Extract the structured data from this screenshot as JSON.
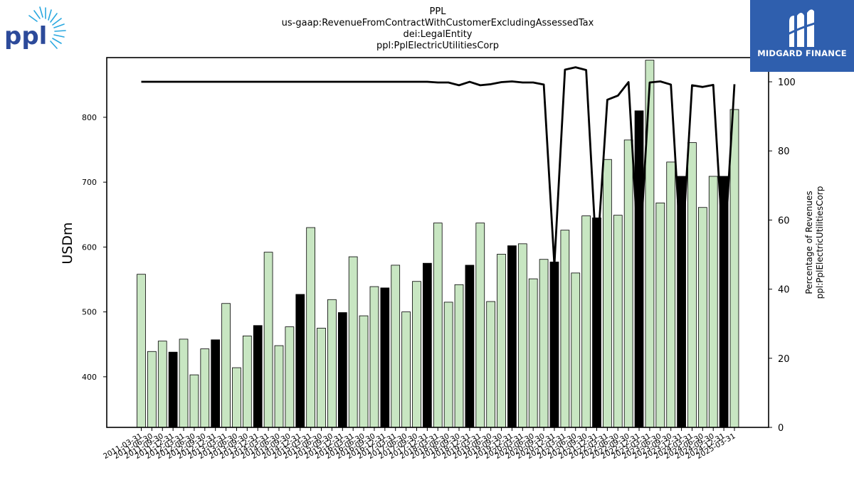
{
  "title_lines": [
    "PPL",
    "us-gaap:RevenueFromContractWithCustomerExcludingAssessedTax",
    "dei:LegalEntity",
    "ppl:PplElectricUtilitiesCorp"
  ],
  "logos": {
    "left_text": "ppl",
    "right_text": "MIDGARD FINANCE"
  },
  "colors": {
    "bar_light": "#c8e6c2",
    "bar_dark": "#000000",
    "line": "#000000",
    "logo_left": "#2c4a9a",
    "logo_left_rays": "#29a8e0",
    "logo_right_bg": "#2f5fae"
  },
  "chart_data": {
    "type": "bar",
    "ylabel": "USDm",
    "y2label_lines": [
      "Percentage of Revenues",
      "ppl:PplElectricUtilitiesCorp"
    ],
    "ylim": [
      322,
      892
    ],
    "y2lim": [
      0,
      107
    ],
    "yticks": [
      400,
      500,
      600,
      700,
      800
    ],
    "y2ticks": [
      0,
      20,
      40,
      60,
      80,
      100
    ],
    "grid": false,
    "categories": [
      "2011-03-31",
      "2011-06-30",
      "2011-09-30",
      "2011-12-31",
      "2012-03-31",
      "2012-06-30",
      "2012-09-30",
      "2012-12-31",
      "2013-03-31",
      "2013-06-30",
      "2013-09-30",
      "2013-12-31",
      "2014-03-31",
      "2014-06-30",
      "2014-09-30",
      "2014-12-31",
      "2015-03-31",
      "2015-06-30",
      "2015-09-30",
      "2015-12-31",
      "2016-03-31",
      "2016-06-30",
      "2016-09-30",
      "2016-12-31",
      "2017-03-31",
      "2017-06-30",
      "2017-09-30",
      "2017-12-31",
      "2018-03-31",
      "2018-06-30",
      "2018-09-30",
      "2018-12-31",
      "2019-03-31",
      "2019-06-30",
      "2019-09-30",
      "2019-12-31",
      "2020-03-31",
      "2020-06-30",
      "2020-09-30",
      "2020-12-31",
      "2021-03-31",
      "2021-06-30",
      "2021-09-30",
      "2021-12-31",
      "2022-03-31",
      "2022-06-30",
      "2022-09-30",
      "2022-12-31",
      "2023-03-31",
      "2023-06-30",
      "2023-09-30",
      "2023-12-31",
      "2024-03-31",
      "2024-06-30",
      "2024-09-30",
      "2024-12-31",
      "2025-03-31"
    ],
    "xtick_labels": [
      "2011-03-31",
      "2011-06-30",
      "2011-09-30",
      "2011-12-31",
      "2012-03-31",
      "2012-06-30",
      "2012-09-30",
      "2012-12-31",
      "2013-03-31",
      "2013-06-30",
      "2013-09-30",
      "2013-12-31",
      "2014-03-31",
      "2014-06-30",
      "2014-09-30",
      "2014-12-31",
      "2015-03-31",
      "2015-06-30",
      "2015-09-30",
      "2015-12-31",
      "2016-03-31",
      "2016-06-30",
      "2016-09-30",
      "2016-12-31",
      "2017-03-31",
      "2017-06-30",
      "2017-09-30",
      "2017-12-31",
      "2018-03-31",
      "2018-06-30",
      "2018-09-30",
      "2018-12-31",
      "2019-03-31",
      "2019-06-30",
      "2019-09-30",
      "2019-12-31",
      "2020-03-31",
      "2020-06-30",
      "2020-09-30",
      "2020-12-31",
      "2021-03-31",
      "2021-06-30",
      "2021-09-30",
      "2021-12-31",
      "2022-03-31",
      "2022-06-30",
      "2022-09-30",
      "2022-12-31",
      "2023-03-31",
      "2023-06-30",
      "2023-09-30",
      "2023-12-31",
      "2024-03-31",
      "2024-06-30",
      "2024-09-30",
      "2024-12-31",
      "2025-03-31"
    ],
    "series": [
      {
        "axis": "left",
        "kind": "bar",
        "values": [
          558,
          439,
          455,
          438,
          458,
          403,
          443,
          457,
          513,
          414,
          463,
          479,
          592,
          448,
          477,
          527,
          630,
          475,
          519,
          499,
          585,
          494,
          539,
          537,
          572,
          500,
          547,
          575,
          637,
          515,
          542,
          572,
          637,
          516,
          589,
          602,
          605,
          551,
          581,
          577,
          626,
          560,
          648,
          645,
          735,
          649,
          765,
          810,
          888,
          668,
          731,
          709,
          761,
          661,
          709,
          709,
          812
        ],
        "dark": [
          false,
          false,
          false,
          true,
          false,
          false,
          false,
          true,
          false,
          false,
          false,
          true,
          false,
          false,
          false,
          true,
          false,
          false,
          false,
          true,
          false,
          false,
          false,
          true,
          false,
          false,
          false,
          true,
          false,
          false,
          false,
          true,
          false,
          false,
          false,
          true,
          false,
          false,
          false,
          true,
          false,
          false,
          false,
          true,
          false,
          false,
          false,
          true,
          false,
          false,
          false,
          true,
          false,
          false,
          false,
          true,
          false
        ]
      },
      {
        "axis": "right",
        "kind": "line",
        "values": [
          100,
          100,
          100,
          100,
          100,
          100,
          100,
          100,
          100,
          100,
          100,
          100,
          100,
          100,
          100,
          100,
          100,
          100,
          100,
          100,
          100,
          100,
          100,
          100,
          100,
          100,
          100,
          100,
          99.8,
          99.8,
          99,
          100,
          99,
          99.3,
          99.9,
          100.1,
          99.8,
          99.8,
          99.2,
          47,
          103.5,
          104.2,
          103.4,
          48,
          94.8,
          96,
          99.9,
          47,
          99.8,
          100.1,
          99.2,
          48,
          99,
          98.5,
          99.1,
          48,
          99.3
        ]
      }
    ]
  }
}
